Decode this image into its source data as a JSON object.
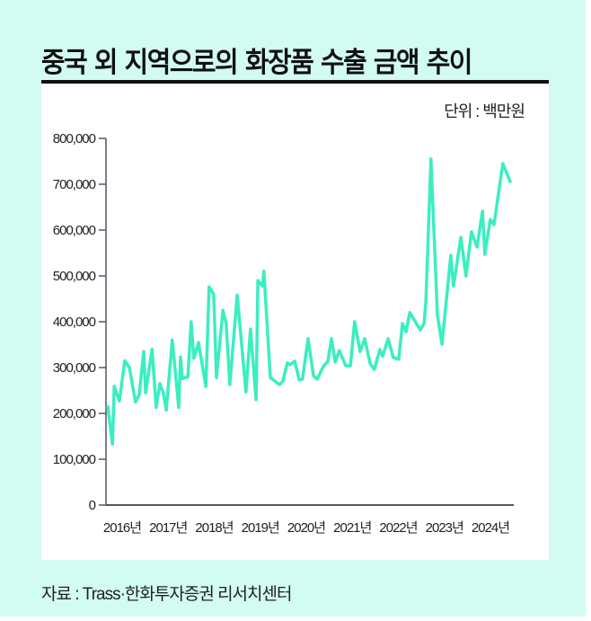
{
  "title": "중국 외 지역으로의 화장품 수출 금액 추이",
  "unit": "단위 : 백만원",
  "source": "자료 : Trass·한화투자증권 리서치센터",
  "colors": {
    "background": "#d2fbf2",
    "line": "#3beec0",
    "axis": "#555566"
  },
  "chart_data": {
    "type": "line",
    "title": "중국 외 지역으로의 화장품 수출 금액 추이",
    "xlabel": "",
    "ylabel": "단위 : 백만원",
    "ylim": [
      0,
      800000
    ],
    "xlim": [
      2016,
      2024.9
    ],
    "grid": false,
    "y_ticks": [
      {
        "value": 0,
        "label": "0"
      },
      {
        "value": 100000,
        "label": "100,000"
      },
      {
        "value": 200000,
        "label": "200,000"
      },
      {
        "value": 300000,
        "label": "300,000"
      },
      {
        "value": 400000,
        "label": "400,000"
      },
      {
        "value": 500000,
        "label": "500,000"
      },
      {
        "value": 600000,
        "label": "600,000"
      },
      {
        "value": 700000,
        "label": "700,000"
      },
      {
        "value": 800000,
        "label": "800,000"
      }
    ],
    "x_ticks": [
      {
        "value": 2016,
        "label": "2016년"
      },
      {
        "value": 2017,
        "label": "2017년"
      },
      {
        "value": 2018,
        "label": "2018년"
      },
      {
        "value": 2019,
        "label": "2019년"
      },
      {
        "value": 2020,
        "label": "2020년"
      },
      {
        "value": 2021,
        "label": "2021년"
      },
      {
        "value": 2022,
        "label": "2022년"
      },
      {
        "value": 2023,
        "label": "2023년"
      },
      {
        "value": 2024,
        "label": "2024년"
      }
    ],
    "series": [
      {
        "name": "수출 금액",
        "x": [
          2016.04,
          2016.14,
          2016.18,
          2016.29,
          2016.41,
          2016.51,
          2016.64,
          2016.72,
          2016.82,
          2016.86,
          2017.0,
          2017.09,
          2017.17,
          2017.25,
          2017.31,
          2017.44,
          2017.58,
          2017.62,
          2017.66,
          2017.78,
          2017.85,
          2017.91,
          2018.01,
          2018.17,
          2018.24,
          2018.34,
          2018.4,
          2018.54,
          2018.61,
          2018.69,
          2018.85,
          2019.04,
          2019.14,
          2019.26,
          2019.3,
          2019.4,
          2019.43,
          2019.57,
          2019.77,
          2019.84,
          2019.94,
          2020.0,
          2020.1,
          2020.2,
          2020.27,
          2020.39,
          2020.51,
          2020.59,
          2020.72,
          2020.82,
          2020.9,
          2020.98,
          2021.07,
          2021.21,
          2021.31,
          2021.4,
          2021.52,
          2021.62,
          2021.74,
          2021.83,
          2021.95,
          2022.01,
          2022.13,
          2022.24,
          2022.36,
          2022.44,
          2022.52,
          2022.6,
          2022.83,
          2022.91,
          2022.95,
          2023.06,
          2023.2,
          2023.3,
          2023.49,
          2023.55,
          2023.71,
          2023.82,
          2023.94,
          2024.06,
          2024.18,
          2024.23,
          2024.35,
          2024.43,
          2024.62,
          2024.78
        ],
        "values": [
          215000,
          133000,
          259000,
          227000,
          315000,
          300000,
          225000,
          240000,
          335000,
          245000,
          340000,
          213000,
          265000,
          243000,
          207000,
          360000,
          213000,
          323000,
          276000,
          280000,
          400000,
          320000,
          355000,
          259000,
          476000,
          460000,
          278000,
          425000,
          396000,
          263000,
          458000,
          247000,
          384000,
          230000,
          490000,
          478000,
          510000,
          278000,
          263000,
          270000,
          310000,
          306000,
          314000,
          273000,
          275000,
          363000,
          282000,
          275000,
          302000,
          314000,
          363000,
          312000,
          337000,
          304000,
          304000,
          400000,
          335000,
          363000,
          308000,
          296000,
          339000,
          325000,
          363000,
          322000,
          318000,
          396000,
          378000,
          420000,
          382000,
          396000,
          445000,
          755000,
          415000,
          351000,
          545000,
          478000,
          584000,
          500000,
          596000,
          563000,
          641000,
          547000,
          623000,
          612000,
          745000,
          706000
        ]
      }
    ],
    "legend": "none"
  }
}
